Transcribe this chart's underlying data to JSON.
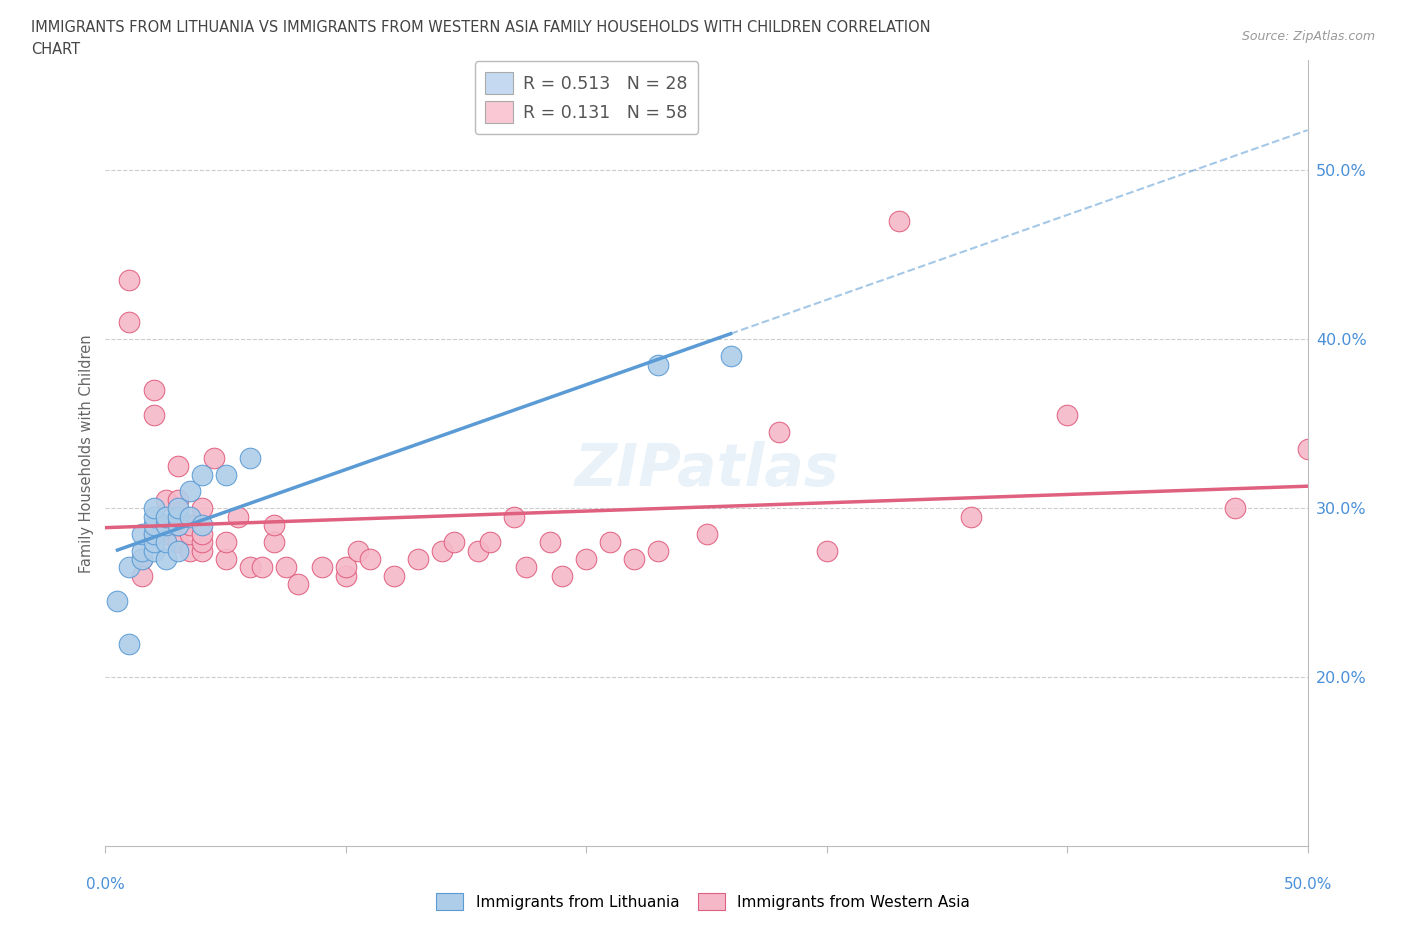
{
  "title_line1": "IMMIGRANTS FROM LITHUANIA VS IMMIGRANTS FROM WESTERN ASIA FAMILY HOUSEHOLDS WITH CHILDREN CORRELATION",
  "title_line2": "CHART",
  "source_text": "Source: ZipAtlas.com",
  "ylabel": "Family Households with Children",
  "ytick_values": [
    0.2,
    0.3,
    0.4,
    0.5
  ],
  "xlim": [
    0.0,
    0.5
  ],
  "ylim": [
    0.1,
    0.565
  ],
  "watermark": "ZIPatlas",
  "color_blue": "#aecde8",
  "color_pink": "#f5b8c8",
  "color_blue_line": "#5b9bd5",
  "color_pink_line": "#e06080",
  "color_blue_dark": "#5b9bd5",
  "color_pink_dark": "#e06080",
  "legend_box_blue": "#c5daf0",
  "legend_box_pink": "#f9c8d4",
  "legend_r1": "R = 0.513   N = 28",
  "legend_r2": "R = 0.131   N = 58",
  "lithuania_x": [
    0.005,
    0.01,
    0.01,
    0.015,
    0.015,
    0.015,
    0.02,
    0.02,
    0.02,
    0.02,
    0.02,
    0.02,
    0.025,
    0.025,
    0.025,
    0.025,
    0.03,
    0.03,
    0.03,
    0.03,
    0.035,
    0.035,
    0.04,
    0.04,
    0.05,
    0.06,
    0.23,
    0.26
  ],
  "lithuania_y": [
    0.245,
    0.265,
    0.22,
    0.27,
    0.275,
    0.285,
    0.275,
    0.28,
    0.285,
    0.29,
    0.295,
    0.3,
    0.27,
    0.28,
    0.29,
    0.295,
    0.275,
    0.29,
    0.295,
    0.3,
    0.295,
    0.31,
    0.29,
    0.32,
    0.32,
    0.33,
    0.385,
    0.39
  ],
  "western_asia_x": [
    0.01,
    0.01,
    0.015,
    0.015,
    0.02,
    0.02,
    0.02,
    0.025,
    0.025,
    0.025,
    0.03,
    0.03,
    0.03,
    0.03,
    0.035,
    0.035,
    0.035,
    0.04,
    0.04,
    0.04,
    0.04,
    0.045,
    0.05,
    0.05,
    0.055,
    0.06,
    0.065,
    0.07,
    0.07,
    0.075,
    0.08,
    0.09,
    0.1,
    0.1,
    0.105,
    0.11,
    0.12,
    0.13,
    0.14,
    0.145,
    0.155,
    0.16,
    0.17,
    0.175,
    0.185,
    0.19,
    0.2,
    0.21,
    0.22,
    0.23,
    0.25,
    0.28,
    0.3,
    0.33,
    0.36,
    0.4,
    0.47,
    0.5
  ],
  "western_asia_y": [
    0.435,
    0.41,
    0.27,
    0.26,
    0.285,
    0.37,
    0.355,
    0.285,
    0.29,
    0.305,
    0.28,
    0.29,
    0.305,
    0.325,
    0.275,
    0.285,
    0.29,
    0.275,
    0.28,
    0.285,
    0.3,
    0.33,
    0.27,
    0.28,
    0.295,
    0.265,
    0.265,
    0.28,
    0.29,
    0.265,
    0.255,
    0.265,
    0.26,
    0.265,
    0.275,
    0.27,
    0.26,
    0.27,
    0.275,
    0.28,
    0.275,
    0.28,
    0.295,
    0.265,
    0.28,
    0.26,
    0.27,
    0.28,
    0.27,
    0.275,
    0.285,
    0.345,
    0.275,
    0.47,
    0.295,
    0.355,
    0.3,
    0.335
  ]
}
